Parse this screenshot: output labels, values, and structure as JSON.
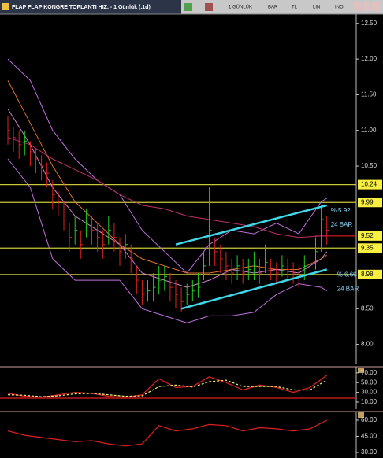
{
  "window": {
    "title": "FLAP FLAP KONGRE TOPLANTI HIZ. - 1 Günlük (.1d)",
    "toolbar": [
      "1 GÜNLÜK",
      "BAR",
      "TL",
      "LIN",
      "INO"
    ]
  },
  "chart_data": [
    {
      "type": "ohlc",
      "high": [
        11.2,
        11.05,
        11.0,
        11.0,
        10.85,
        10.75,
        10.65,
        10.55,
        10.3,
        10.15,
        10.0,
        9.7,
        9.8,
        9.6,
        9.9,
        9.8,
        9.7,
        9.6,
        9.8,
        9.7,
        9.5,
        9.55,
        9.4,
        9.1,
        8.9,
        8.9,
        9.0,
        9.1,
        9.1,
        9.0,
        8.9,
        8.8,
        8.85,
        8.9,
        9.0,
        9.3,
        10.2,
        9.5,
        9.4,
        9.3,
        9.2,
        9.25,
        9.2,
        9.2,
        9.3,
        9.2,
        9.4,
        9.2,
        9.15,
        9.25,
        9.2,
        9.15,
        9.1,
        9.25,
        9.15,
        9.5,
        9.95,
        9.8
      ],
      "low": [
        10.8,
        10.7,
        10.6,
        10.65,
        10.5,
        10.4,
        10.3,
        10.2,
        9.9,
        9.8,
        9.6,
        9.3,
        9.4,
        9.2,
        9.5,
        9.4,
        9.3,
        9.2,
        9.4,
        9.3,
        9.1,
        9.2,
        9.0,
        8.7,
        8.55,
        8.6,
        8.6,
        8.7,
        8.75,
        8.6,
        8.5,
        8.45,
        8.55,
        8.6,
        8.65,
        8.9,
        9.1,
        9.1,
        9.0,
        8.9,
        8.85,
        8.9,
        8.85,
        8.9,
        8.9,
        8.85,
        9.0,
        8.9,
        8.85,
        8.95,
        8.9,
        8.85,
        8.8,
        8.9,
        8.85,
        9.05,
        9.3,
        9.4
      ],
      "close": [
        11.0,
        10.9,
        10.8,
        10.85,
        10.7,
        10.6,
        10.5,
        10.4,
        10.1,
        10.0,
        9.8,
        9.5,
        9.6,
        9.4,
        9.7,
        9.6,
        9.5,
        9.4,
        9.6,
        9.5,
        9.3,
        9.4,
        9.2,
        8.9,
        8.7,
        8.75,
        8.8,
        8.9,
        8.95,
        8.8,
        8.7,
        8.6,
        8.7,
        8.75,
        8.8,
        9.1,
        9.6,
        9.3,
        9.2,
        9.1,
        9.0,
        9.1,
        9.0,
        9.05,
        9.1,
        9.0,
        9.15,
        9.05,
        9.0,
        9.1,
        9.05,
        9.0,
        8.95,
        9.1,
        9.0,
        9.3,
        9.75,
        9.6
      ],
      "up_color": "#22cc22",
      "down_color": "#dd2222",
      "lines": [
        {
          "color": "#c070e0",
          "x": [
            0,
            4,
            8,
            12,
            16,
            20,
            24,
            28,
            32,
            36,
            40,
            44,
            48,
            52,
            56,
            57
          ],
          "values": [
            12.0,
            11.7,
            11.0,
            10.6,
            10.3,
            10.1,
            9.6,
            9.3,
            9.0,
            9.4,
            9.6,
            9.55,
            9.7,
            9.55,
            10.0,
            10.05
          ]
        },
        {
          "color": "#c070e0",
          "x": [
            0,
            4,
            8,
            12,
            16,
            20,
            24,
            28,
            32,
            36,
            40,
            44,
            48,
            52,
            56,
            57
          ],
          "values": [
            10.6,
            10.2,
            9.2,
            8.9,
            8.9,
            8.9,
            8.5,
            8.4,
            8.3,
            8.4,
            8.4,
            8.45,
            8.7,
            8.85,
            8.8,
            8.75
          ]
        },
        {
          "color": "#e07030",
          "x": [
            0,
            4,
            8,
            12,
            16,
            20,
            24,
            28,
            32,
            36,
            40,
            44,
            48,
            52,
            56,
            57
          ],
          "values": [
            11.7,
            11.1,
            10.5,
            10.0,
            9.7,
            9.4,
            9.2,
            9.1,
            9.0,
            9.0,
            9.05,
            9.1,
            9.05,
            9.05,
            9.2,
            9.25
          ]
        },
        {
          "color": "#c0306a",
          "x": [
            0,
            4,
            8,
            12,
            16,
            20,
            24,
            28,
            32,
            36,
            40,
            44,
            48,
            52,
            56,
            57
          ],
          "values": [
            10.9,
            10.8,
            10.6,
            10.45,
            10.3,
            10.1,
            9.95,
            9.9,
            9.8,
            9.75,
            9.7,
            9.65,
            9.55,
            9.5,
            9.52,
            9.52
          ]
        },
        {
          "color": "#d080d0",
          "x": [
            0,
            4,
            8,
            12,
            16,
            20,
            24,
            28,
            32,
            36,
            40,
            44,
            48,
            52,
            56,
            57
          ],
          "values": [
            11.3,
            10.8,
            10.2,
            9.8,
            9.6,
            9.4,
            9.0,
            8.9,
            8.8,
            8.9,
            9.05,
            9.0,
            9.05,
            9.0,
            9.2,
            9.3
          ]
        }
      ],
      "trendlines": [
        {
          "color": "#40d8e8",
          "x": [
            30,
            57
          ],
          "values": [
            9.4,
            9.95
          ],
          "labels": [
            "% 5.92",
            "24 BAR"
          ]
        },
        {
          "color": "#40d8e8",
          "x": [
            31,
            57
          ],
          "values": [
            8.5,
            9.05
          ],
          "labels": [
            "% 6.60",
            "24 BAR"
          ]
        }
      ],
      "levels": [
        10.24,
        9.99,
        9.35,
        8.98
      ],
      "level_color": "#c8c83a",
      "last_price": 9.52,
      "last_color": "#ff2020",
      "ylim": [
        7.72,
        12.63
      ],
      "yticks": [
        {
          "value": 12.5,
          "label": "12.50"
        },
        {
          "value": 12.0,
          "label": "12.00"
        },
        {
          "value": 11.5,
          "label": "11.50"
        },
        {
          "value": 11.0,
          "label": "11.00"
        },
        {
          "value": 10.5,
          "label": "10.50"
        },
        {
          "value": 8.5,
          "label": "8.50"
        },
        {
          "value": 8.0,
          "label": "8.00"
        }
      ]
    },
    {
      "type": "line",
      "x": [
        0,
        3,
        6,
        9,
        12,
        15,
        18,
        21,
        24,
        27,
        30,
        33,
        36,
        39,
        42,
        45,
        48,
        51,
        54,
        57
      ],
      "series": [
        {
          "color": "#e02020",
          "style": "solid",
          "values": [
            28,
            22,
            20,
            25,
            30,
            28,
            22,
            20,
            25,
            58,
            40,
            42,
            62,
            50,
            35,
            45,
            40,
            30,
            40,
            65
          ]
        },
        {
          "color": "#f0f080",
          "style": "dashed",
          "values": [
            25,
            24,
            21,
            23,
            27,
            28,
            25,
            22,
            23,
            42,
            45,
            41,
            52,
            55,
            42,
            42,
            42,
            35,
            35,
            55
          ]
        }
      ],
      "hlines": [
        18
      ],
      "hline_color": "#c01818",
      "ylim": [
        -4.5,
        82.6
      ],
      "yticks": [
        {
          "value": 70,
          "label": "70.00"
        },
        {
          "value": 50,
          "label": "50.00"
        },
        {
          "value": 30,
          "label": "30.00"
        },
        {
          "value": 10,
          "label": "10.00"
        }
      ]
    },
    {
      "type": "line",
      "x": [
        0,
        3,
        6,
        9,
        12,
        15,
        18,
        21,
        24,
        27,
        30,
        33,
        36,
        39,
        42,
        45,
        48,
        51,
        54,
        57
      ],
      "series": [
        {
          "color": "#e02020",
          "style": "solid",
          "values": [
            50,
            46,
            44,
            42,
            40,
            41,
            38,
            36,
            38,
            55,
            50,
            52,
            56,
            55,
            50,
            53,
            52,
            50,
            52,
            60
          ]
        }
      ],
      "ylim": [
        24.9,
        68
      ],
      "yticks": [
        {
          "value": 60,
          "label": "60.00"
        },
        {
          "value": 45,
          "label": "45.00"
        },
        {
          "value": 30,
          "label": "30.00"
        }
      ]
    }
  ]
}
